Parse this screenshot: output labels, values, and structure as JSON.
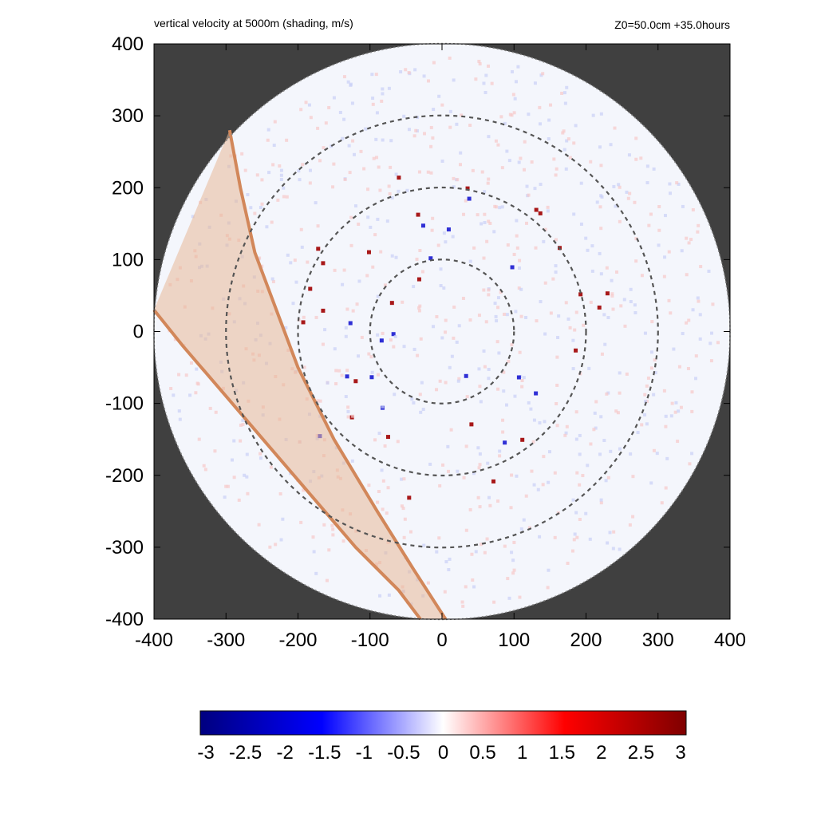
{
  "chart_data": {
    "type": "heatmap",
    "title": "vertical velocity at 5000m (shading, m/s)",
    "annotation_right": "Z0=50.0cm  +35.0hours",
    "xlabel": "",
    "ylabel": "",
    "xlim": [
      -400,
      400
    ],
    "ylim": [
      -400,
      400
    ],
    "xticks": [
      "-400",
      "-300",
      "-200",
      "-100",
      "0",
      "100",
      "200",
      "300",
      "400"
    ],
    "yticks": [
      "400",
      "300",
      "200",
      "100",
      "0",
      "-100",
      "-200",
      "-300",
      "-400"
    ],
    "domain_radius": 400,
    "range_rings": [
      100,
      200,
      300
    ],
    "colorbar": {
      "min": -3,
      "max": 3,
      "ticks": [
        "-3",
        "-2.5",
        "-2",
        "-1.5",
        "-1",
        "-0.5",
        "0",
        "0.5",
        "1",
        "1.5",
        "2",
        "2.5",
        "3"
      ],
      "colors": [
        "#00007f",
        "#0000ff",
        "#ffffff",
        "#ff0000",
        "#7f0000"
      ]
    },
    "colors": {
      "outside": "#404040",
      "ring": "#555555",
      "band_fill": "#e8b898",
      "band_edge": "#d2875a"
    },
    "band": {
      "left_edge": [
        [
          -400,
          30
        ],
        [
          -360,
          -20
        ],
        [
          -300,
          -90
        ],
        [
          -240,
          -160
        ],
        [
          -180,
          -230
        ],
        [
          -120,
          -300
        ],
        [
          -60,
          -360
        ],
        [
          -30,
          -400
        ]
      ],
      "right_edge": [
        [
          -295,
          280
        ],
        [
          -280,
          200
        ],
        [
          -260,
          110
        ],
        [
          -230,
          30
        ],
        [
          -200,
          -50
        ],
        [
          -150,
          -150
        ],
        [
          -90,
          -250
        ],
        [
          -40,
          -330
        ],
        [
          5,
          -400
        ]
      ]
    }
  }
}
